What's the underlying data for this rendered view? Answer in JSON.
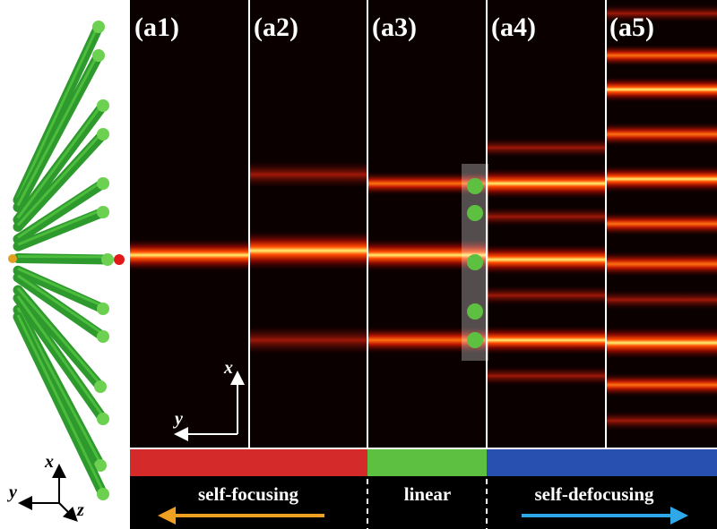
{
  "panels": [
    "(a1)",
    "(a2)",
    "(a3)",
    "(a4)",
    "(a5)"
  ],
  "inset_axes": {
    "x": "x",
    "y": "y"
  },
  "corner_axes": {
    "x": "x",
    "y": "y",
    "z": "z"
  },
  "regimes": [
    "self-focusing",
    "linear",
    "self-defocusing"
  ]
}
